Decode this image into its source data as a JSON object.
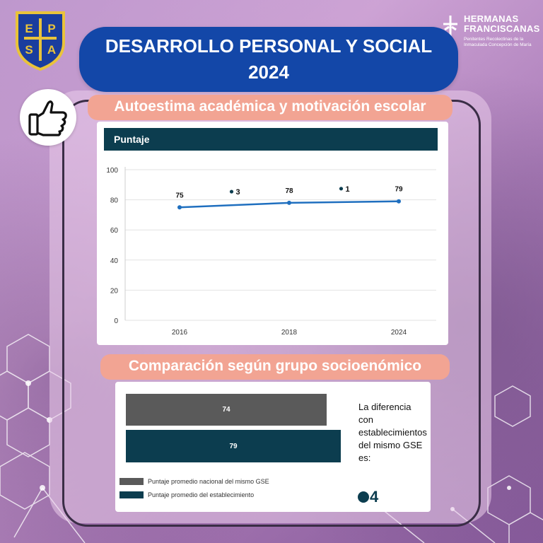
{
  "crest": {
    "letters": [
      "E",
      "P",
      "S",
      "A"
    ]
  },
  "brand": {
    "name_line1": "HERMANAS",
    "name_line2": "FRANCISCANAS",
    "subtitle": "Penitentes Recolectinas de la Inmaculada Concepción de María"
  },
  "title": {
    "line1": "DESARROLLO PERSONAL Y SOCIAL",
    "line2": "2024"
  },
  "section1": {
    "label": "Autoestima académica y motivación escolar",
    "panel_header": "Puntaje"
  },
  "section2": {
    "label": "Comparación según grupo socioenómico",
    "difference_text": "La diferencia\ncon\nestablecimientos\ndel mismo GSE\nes:",
    "difference_value": "4",
    "legend": {
      "national": "Puntaje promedio nacional del mismo GSE",
      "school": "Puntaje promedio del establecimiento"
    },
    "bars": {
      "national_value": "74",
      "school_value": "79"
    }
  },
  "colors": {
    "title_bg": "#1347a8",
    "label_bg": "#f2a493",
    "dark_teal": "#0c3d4f",
    "gray_bar": "#5a5a5a",
    "line": "#1f6fbf"
  },
  "chart_data": [
    {
      "type": "line",
      "title": "Puntaje",
      "categories": [
        "2016",
        "2018",
        "2024"
      ],
      "series": [
        {
          "values": [
            75,
            78,
            79
          ]
        }
      ],
      "data_labels": [
        "75",
        "78",
        "79"
      ],
      "change_annotations": [
        {
          "between": [
            "2016",
            "2018"
          ],
          "label": "3"
        },
        {
          "between": [
            "2018",
            "2024"
          ],
          "label": "1"
        }
      ],
      "yticks": [
        "0",
        "20",
        "40",
        "60",
        "80",
        "100"
      ],
      "ylim": [
        0,
        100
      ],
      "grid": true
    },
    {
      "type": "bar",
      "orientation": "horizontal",
      "series": [
        {
          "name": "Puntaje promedio nacional del mismo GSE",
          "values": [
            74
          ]
        },
        {
          "name": "Puntaje promedio del establecimiento",
          "values": [
            79
          ]
        }
      ],
      "data_labels": [
        "74",
        "79"
      ]
    }
  ]
}
